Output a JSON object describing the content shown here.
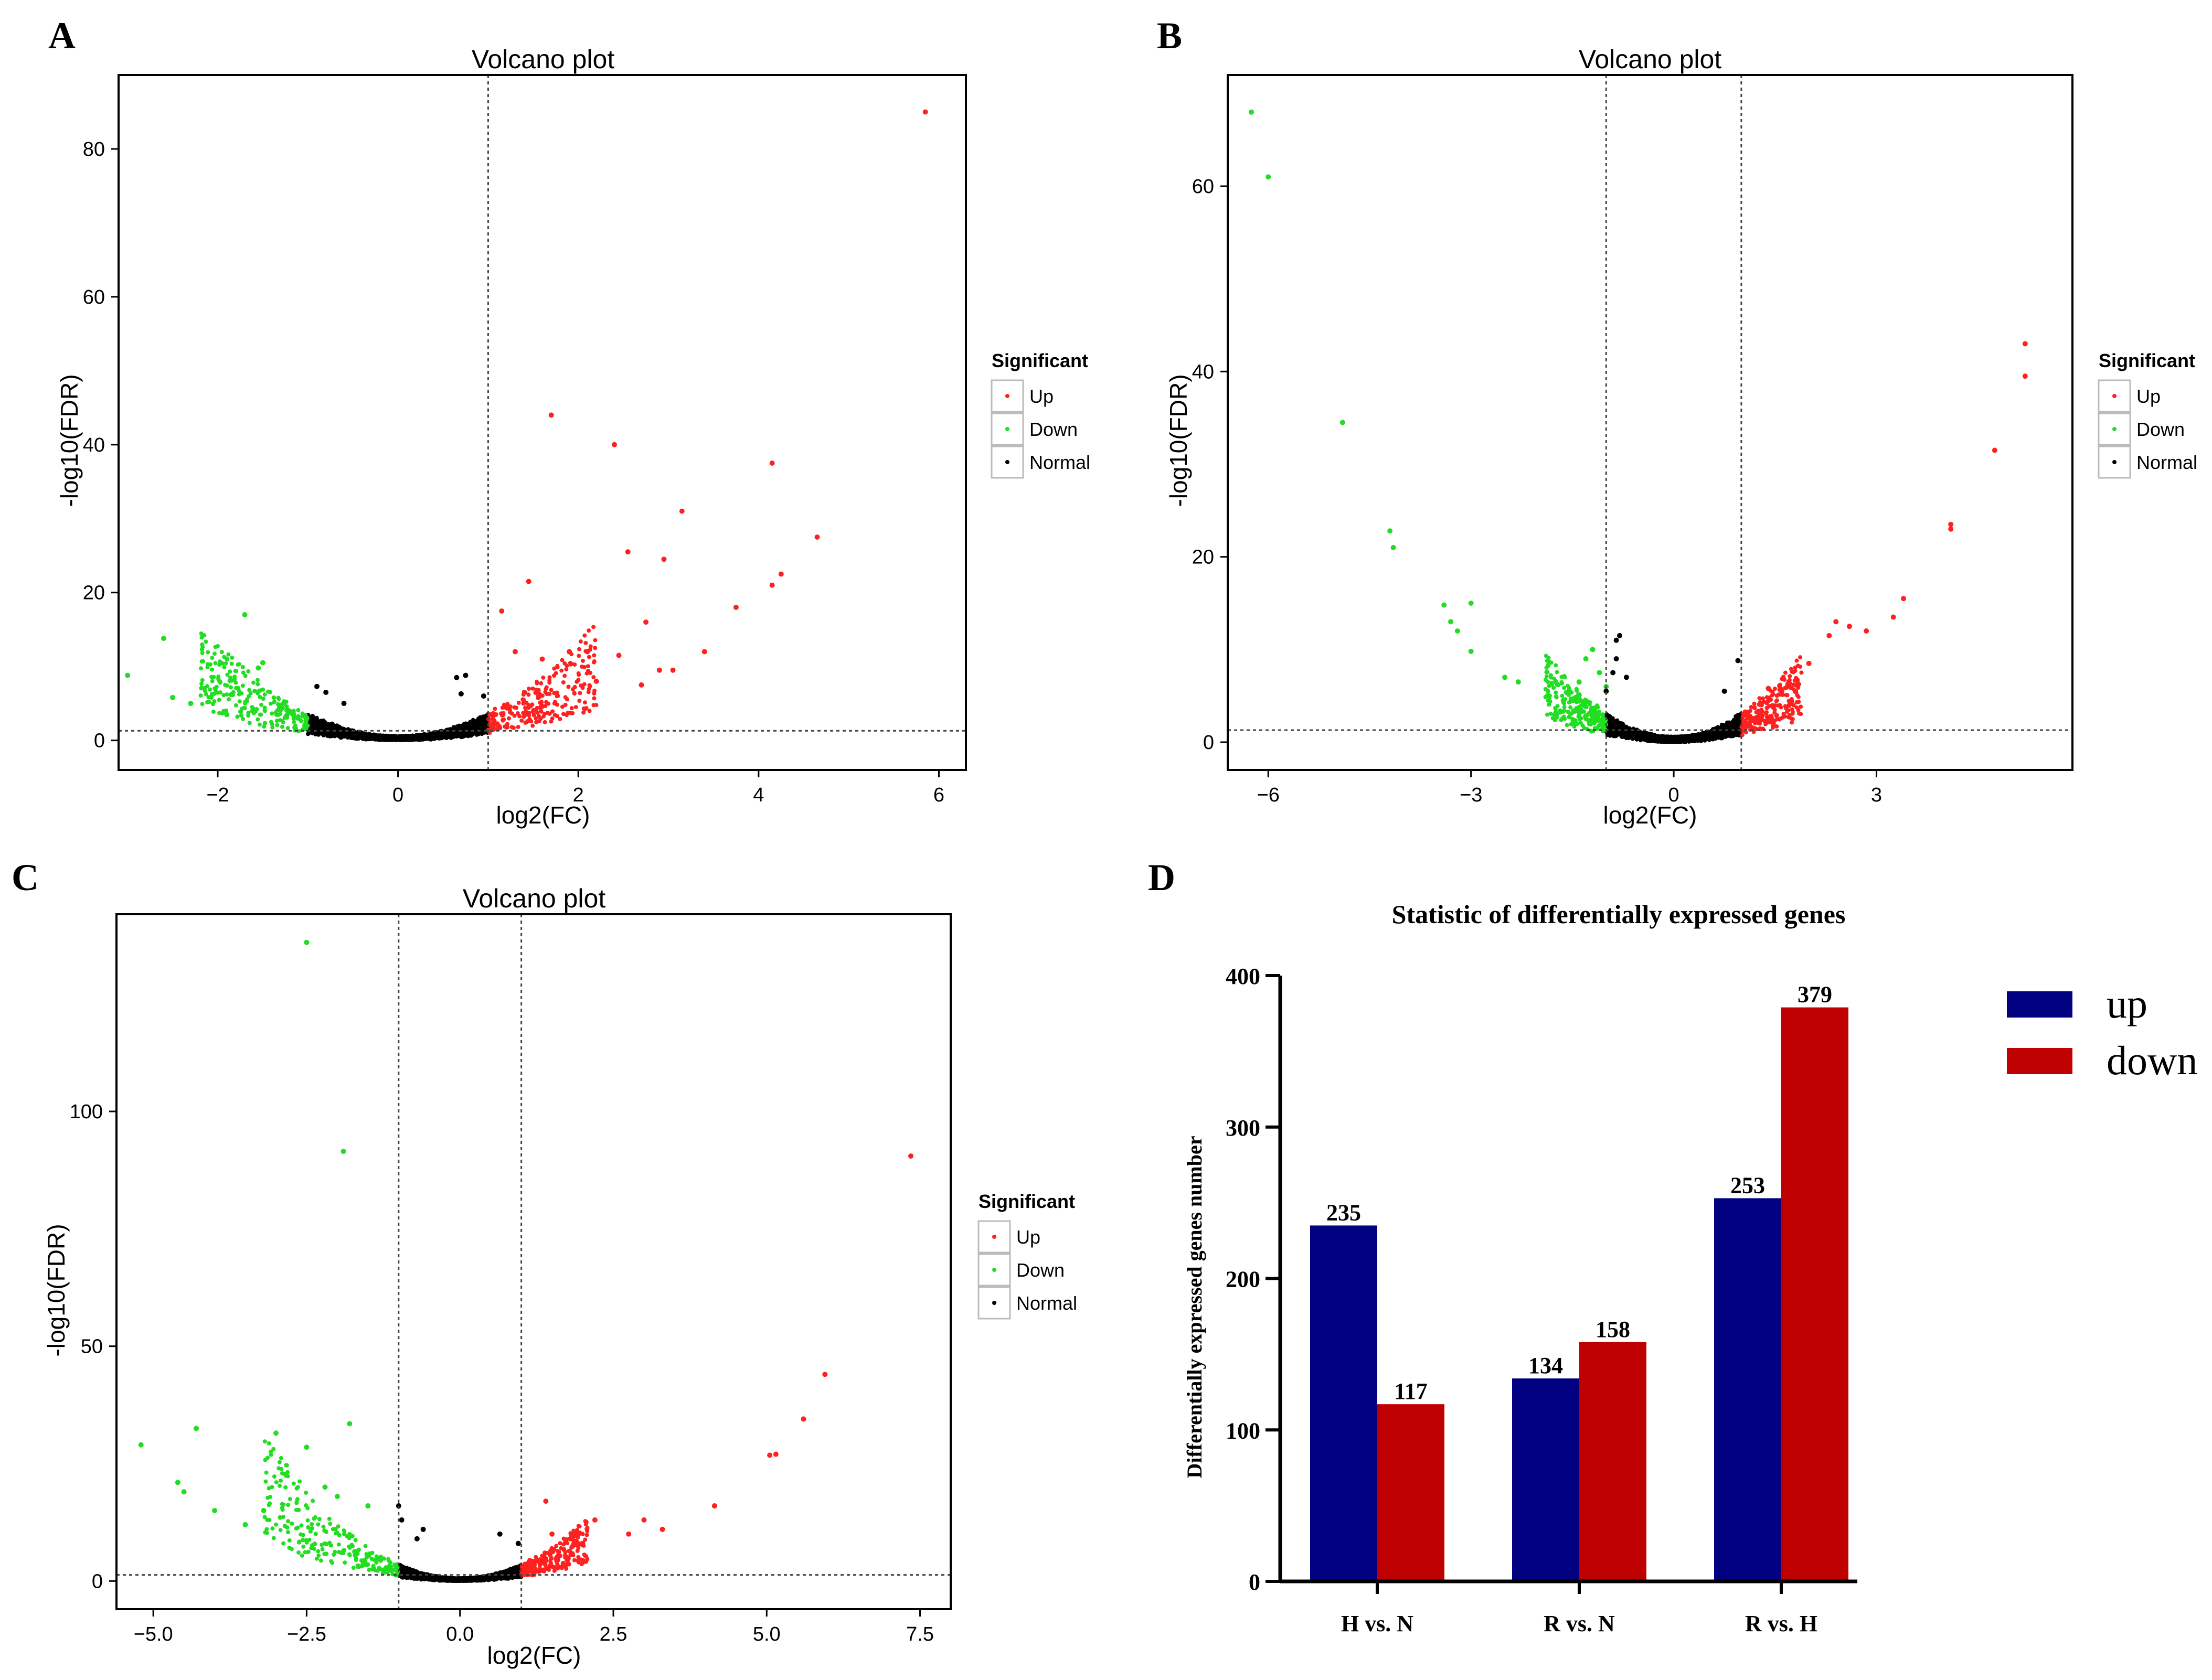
{
  "colors": {
    "up": "#ff2020",
    "down": "#22dd22",
    "normal": "#000000",
    "bar_up": "#000080",
    "bar_down": "#bf0000"
  },
  "legend": {
    "title": "Significant",
    "items": [
      "Up",
      "Down",
      "Normal"
    ]
  },
  "chart_data": [
    {
      "panel": "A",
      "type": "scatter",
      "title": "Volcano plot",
      "xlabel": "log2(FC)",
      "ylabel": "-log10(FDR)",
      "xlim": [
        -3.1,
        6.3
      ],
      "ylim": [
        -4,
        90
      ],
      "xticks": [
        -2,
        0,
        2,
        4,
        6
      ],
      "yticks": [
        0,
        20,
        40,
        60,
        80
      ],
      "xtick_labels": [
        "−2",
        "0",
        "2",
        "4",
        "6"
      ],
      "ytick_labels": [
        "0",
        "20",
        "40",
        "60",
        "80"
      ],
      "vlines": [
        1
      ],
      "hlines": [
        1.3
      ],
      "grid": false,
      "legend_position": "right",
      "highlight_points": {
        "up": [
          [
            5.85,
            85
          ],
          [
            1.7,
            44
          ],
          [
            2.4,
            40
          ],
          [
            4.15,
            37.5
          ],
          [
            3.15,
            31
          ],
          [
            4.65,
            27.5
          ],
          [
            2.55,
            25.5
          ],
          [
            2.95,
            24.5
          ],
          [
            4.25,
            22.5
          ],
          [
            4.15,
            21
          ],
          [
            1.45,
            21.5
          ],
          [
            3.75,
            18
          ],
          [
            2.75,
            16
          ],
          [
            1.15,
            17.5
          ],
          [
            3.4,
            12
          ],
          [
            2.1,
            12
          ],
          [
            2.45,
            11.5
          ],
          [
            1.9,
            12
          ],
          [
            2.9,
            9.5
          ],
          [
            3.05,
            9.5
          ],
          [
            2.7,
            7.5
          ],
          [
            2.2,
            8
          ],
          [
            1.6,
            11
          ],
          [
            1.3,
            12
          ]
        ],
        "down": [
          [
            -2.6,
            13.8
          ],
          [
            -1.7,
            17
          ],
          [
            -3.0,
            8.8
          ],
          [
            -1.5,
            10.5
          ],
          [
            -1.55,
            9.8
          ],
          [
            -2.5,
            5.8
          ],
          [
            -2.3,
            5
          ],
          [
            -1.9,
            3.5
          ],
          [
            -1.3,
            4.5
          ]
        ],
        "normal": [
          [
            0.75,
            8.8
          ],
          [
            0.65,
            8.5
          ],
          [
            -0.8,
            6.5
          ],
          [
            -0.9,
            7.3
          ],
          [
            0.7,
            6.3
          ],
          [
            0.95,
            6
          ],
          [
            -0.6,
            5
          ]
        ]
      },
      "dense": {
        "up_xrange": [
          1,
          2.2
        ],
        "down_xrange": [
          -2.2,
          -1
        ],
        "normal_xrange": [
          -1,
          1
        ],
        "steepness": 4.2
      }
    },
    {
      "panel": "B",
      "type": "scatter",
      "title": "Volcano plot",
      "xlabel": "log2(FC)",
      "ylabel": "-log10(FDR)",
      "xlim": [
        -6.6,
        5.9
      ],
      "ylim": [
        -3,
        72
      ],
      "xticks": [
        -6,
        -3,
        0,
        3
      ],
      "yticks": [
        0,
        20,
        40,
        60
      ],
      "xtick_labels": [
        "−6",
        "−3",
        "0",
        "3"
      ],
      "ytick_labels": [
        "0",
        "20",
        "40",
        "60"
      ],
      "vlines": [
        -1,
        1
      ],
      "hlines": [
        1.3
      ],
      "grid": false,
      "legend_position": "right",
      "highlight_points": {
        "up": [
          [
            5.2,
            43
          ],
          [
            5.2,
            39.5
          ],
          [
            4.75,
            31.5
          ],
          [
            4.1,
            23.5
          ],
          [
            4.1,
            23
          ],
          [
            3.4,
            15.5
          ],
          [
            3.25,
            13.5
          ],
          [
            2.4,
            13
          ],
          [
            2.3,
            11.5
          ],
          [
            2.6,
            12.5
          ],
          [
            2.85,
            12
          ],
          [
            2.0,
            8.5
          ],
          [
            1.8,
            5.5
          ],
          [
            1.6,
            5.5
          ],
          [
            1.4,
            5.8
          ]
        ],
        "down": [
          [
            -6.25,
            68
          ],
          [
            -6.0,
            61
          ],
          [
            -4.9,
            34.5
          ],
          [
            -4.2,
            22.8
          ],
          [
            -4.15,
            21
          ],
          [
            -3.4,
            14.8
          ],
          [
            -3.0,
            15
          ],
          [
            -3.3,
            13
          ],
          [
            -3.2,
            12
          ],
          [
            -3.0,
            9.8
          ],
          [
            -2.5,
            7
          ],
          [
            -2.3,
            6.5
          ],
          [
            -1.2,
            10
          ],
          [
            -1.3,
            9
          ],
          [
            -1.1,
            7.5
          ],
          [
            -1.0,
            6
          ],
          [
            -1.4,
            6.5
          ]
        ],
        "normal": [
          [
            -0.8,
            11.5
          ],
          [
            -0.85,
            11
          ],
          [
            -0.85,
            9
          ],
          [
            -1.0,
            5.5
          ],
          [
            -0.9,
            7.5
          ],
          [
            0.95,
            8.8
          ],
          [
            0.75,
            5.5
          ],
          [
            -0.7,
            7
          ]
        ]
      },
      "dense": {
        "up_xrange": [
          1,
          1.9
        ],
        "down_xrange": [
          -1.9,
          -1
        ],
        "normal_xrange": [
          -1,
          1
        ],
        "steepness": 3.4
      }
    },
    {
      "panel": "C",
      "type": "scatter",
      "title": "Volcano plot",
      "xlabel": "log2(FC)",
      "ylabel": "-log10(FDR)",
      "xlim": [
        -5.6,
        8.0
      ],
      "ylim": [
        -6,
        142
      ],
      "xticks": [
        -5.0,
        -2.5,
        0.0,
        2.5,
        5.0,
        7.5
      ],
      "yticks": [
        0,
        50,
        100
      ],
      "xtick_labels": [
        "−5.0",
        "−2.5",
        "0.0",
        "2.5",
        "5.0",
        "7.5"
      ],
      "ytick_labels": [
        "0",
        "50",
        "100"
      ],
      "vlines": [
        -1,
        1
      ],
      "hlines": [
        1.3
      ],
      "grid": false,
      "legend_position": "right",
      "highlight_points": {
        "up": [
          [
            7.35,
            90.5
          ],
          [
            5.95,
            44
          ],
          [
            5.6,
            34.5
          ],
          [
            5.15,
            27
          ],
          [
            5.05,
            26.8
          ],
          [
            4.15,
            16
          ],
          [
            3.3,
            11
          ],
          [
            3.0,
            13
          ],
          [
            2.75,
            10
          ],
          [
            2.2,
            13
          ],
          [
            1.4,
            17
          ],
          [
            1.8,
            9
          ],
          [
            2.0,
            8
          ],
          [
            1.5,
            10
          ]
        ],
        "down": [
          [
            -2.5,
            136
          ],
          [
            -1.9,
            91.5
          ],
          [
            -5.2,
            29
          ],
          [
            -4.3,
            32.5
          ],
          [
            -3.0,
            31.5
          ],
          [
            -2.5,
            28.5
          ],
          [
            -1.8,
            33.5
          ],
          [
            -4.6,
            21
          ],
          [
            -4.5,
            19
          ],
          [
            -4.0,
            15
          ],
          [
            -2.2,
            20
          ],
          [
            -2.0,
            18
          ],
          [
            -3.5,
            12
          ],
          [
            -3.2,
            15
          ],
          [
            -1.5,
            16
          ]
        ],
        "normal": [
          [
            -1.0,
            16
          ],
          [
            -0.95,
            13
          ],
          [
            -0.6,
            11
          ],
          [
            -0.7,
            9
          ],
          [
            0.65,
            10
          ],
          [
            0.95,
            8
          ]
        ]
      },
      "dense": {
        "up_xrange": [
          1,
          2.1
        ],
        "down_xrange": [
          -3.2,
          -1
        ],
        "normal_xrange": [
          -1,
          1
        ],
        "steepness": 4.0
      }
    },
    {
      "panel": "D",
      "type": "bar",
      "title": "Statistic of differentially expressed genes",
      "xlabel": "",
      "ylabel": "Differentially expressed genes number",
      "ylim": [
        0,
        400
      ],
      "yticks": [
        0,
        100,
        200,
        300,
        400
      ],
      "categories": [
        "H vs. N",
        "R vs. N",
        "R vs. H"
      ],
      "series": [
        {
          "name": "up",
          "values": [
            235,
            134,
            253
          ]
        },
        {
          "name": "down",
          "values": [
            117,
            158,
            379
          ]
        }
      ],
      "legend_position": "top-right"
    }
  ]
}
